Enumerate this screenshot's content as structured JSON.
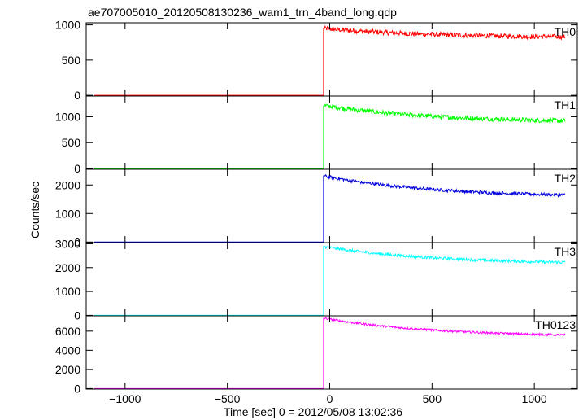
{
  "title": "ae707005010_20120508130236_wam1_trn_4band_long.qdp",
  "xlabel": "Time [sec] 0 = 2012/05/08 13:02:36",
  "ylabel": "Counts/sec",
  "chart_data": {
    "type": "line",
    "title": "ae707005010_20120508130236_wam1_trn_4band_long.qdp",
    "xlabel": "Time [sec] 0 = 2012/05/08 13:02:36",
    "ylabel": "Counts/sec",
    "xlim": [
      -1190,
      1210
    ],
    "xticks": [
      -1000,
      -500,
      0,
      500,
      1000
    ],
    "xtick_labels": [
      "−1000",
      "−500",
      "0",
      "500",
      "1000"
    ],
    "x_start": -1150,
    "x_jump": -30,
    "x_end": 1150,
    "grid": false,
    "panels": [
      {
        "name": "TH0",
        "color": "#ff0000",
        "ylim": [
          -10,
          1030
        ],
        "yticks": [
          0,
          500,
          1000
        ],
        "pre_level": 0,
        "post_start": 950,
        "post_end": 830,
        "noise": 35
      },
      {
        "name": "TH1",
        "color": "#00ff00",
        "ylim": [
          -15,
          1400
        ],
        "yticks": [
          0,
          500,
          1000
        ],
        "pre_level": 0,
        "post_start": 1220,
        "post_end": 920,
        "noise": 45
      },
      {
        "name": "TH2",
        "color": "#0000dd",
        "ylim": [
          -20,
          2550
        ],
        "yticks": [
          0,
          1000,
          2000
        ],
        "pre_level": 0,
        "post_start": 2320,
        "post_end": 1650,
        "noise": 55
      },
      {
        "name": "TH3",
        "color": "#00ffff",
        "ylim": [
          -20,
          3050
        ],
        "yticks": [
          0,
          1000,
          2000,
          3000
        ],
        "pre_level": 0,
        "post_start": 2880,
        "post_end": 2220,
        "noise": 60
      },
      {
        "name": "TH0123",
        "color": "#ff00ff",
        "ylim": [
          -50,
          7600
        ],
        "yticks": [
          0,
          2000,
          4000,
          6000
        ],
        "pre_level": 0,
        "post_start": 7350,
        "post_end": 5600,
        "noise": 110
      }
    ]
  }
}
